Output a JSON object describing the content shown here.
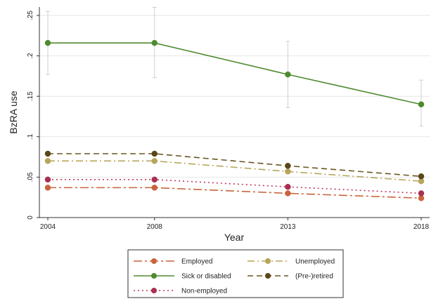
{
  "chart_data": {
    "type": "line",
    "title": "",
    "xlabel": "Year",
    "ylabel": "BzRA use",
    "x": [
      2004,
      2008,
      2013,
      2018
    ],
    "x_tick_labels": [
      "2004",
      "2008",
      "2013",
      "2018"
    ],
    "ylim": [
      0,
      0.25
    ],
    "y_ticks": [
      0,
      0.05,
      0.1,
      0.15,
      0.2,
      0.25
    ],
    "y_tick_labels": [
      "0",
      ".05",
      ".1",
      ".15",
      ".2",
      ".25"
    ],
    "grid": true,
    "legend_position": "bottom",
    "series": [
      {
        "name": "Employed",
        "values": [
          0.037,
          0.037,
          0.03,
          0.024
        ],
        "color": "#c8643c",
        "dash": "longdash-dot",
        "marker_color": "#c8643c"
      },
      {
        "name": "Unemployed",
        "values": [
          0.07,
          0.07,
          0.057,
          0.045
        ],
        "color": "#b8a55a",
        "dash": "dash-dot",
        "marker_color": "#b8a55a"
      },
      {
        "name": "Sick or disabled",
        "values": [
          0.216,
          0.216,
          0.177,
          0.14
        ],
        "color": "#4e8a2e",
        "dash": "solid",
        "marker_color": "#4e8a2e",
        "ci": [
          [
            0.177,
            0.255
          ],
          [
            0.173,
            0.26
          ],
          [
            0.136,
            0.218
          ],
          [
            0.113,
            0.17
          ]
        ]
      },
      {
        "name": "(Pre-)retired",
        "values": [
          0.079,
          0.079,
          0.064,
          0.051
        ],
        "color": "#6b5620",
        "dash": "dash",
        "marker_color": "#5a4618"
      },
      {
        "name": "Non-employed",
        "values": [
          0.047,
          0.047,
          0.038,
          0.03
        ],
        "color": "#c0395a",
        "dash": "dot",
        "marker_color": "#a83050"
      }
    ]
  }
}
